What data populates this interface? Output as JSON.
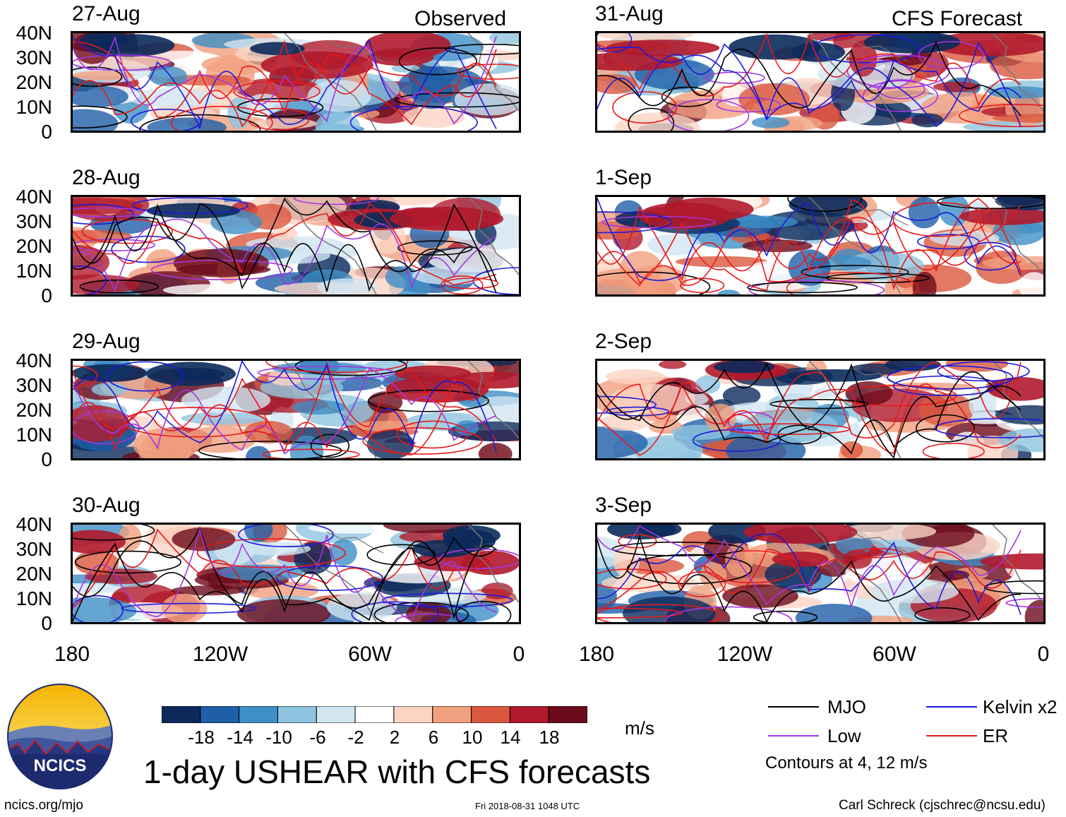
{
  "observed_label": "Observed",
  "forecast_label": "CFS Forecast",
  "observed_dates": [
    "27-Aug",
    "28-Aug",
    "29-Aug",
    "30-Aug"
  ],
  "forecast_dates": [
    "31-Aug",
    "1-Sep",
    "2-Sep",
    "3-Sep"
  ],
  "lat_labels": [
    "40N",
    "30N",
    "20N",
    "10N",
    "0"
  ],
  "lon_labels": [
    "180",
    "120W",
    "60W",
    "0"
  ],
  "title": "1-day USHEAR with CFS forecasts",
  "colorbar": {
    "ticks": [
      "-18",
      "-14",
      "-10",
      "-6",
      "-2",
      "2",
      "6",
      "10",
      "14",
      "18"
    ],
    "units": "m/s",
    "colors": [
      "#0b2a5b",
      "#1f5fa8",
      "#3f8fc6",
      "#8fc4e0",
      "#d2e6f2",
      "#ffffff",
      "#fbd5c4",
      "#f1a07f",
      "#d9583f",
      "#b01a2c",
      "#6b0a1a"
    ]
  },
  "legend": {
    "mjo": "MJO",
    "kelvin": "Kelvin x2",
    "low": "Low",
    "er": "ER",
    "contours_note": "Contours at 4, 12 m/s",
    "colors": {
      "mjo": "#000000",
      "kelvin": "#1a1adb",
      "low": "#a335e0",
      "er": "#e81818"
    }
  },
  "logo_text": "NCICS",
  "footer": {
    "url": "ncics.org/mjo",
    "timestamp": "Fri 2018-08-31 1048 UTC",
    "author": "Carl Schreck (cjschrec@ncsu.edu)"
  }
}
